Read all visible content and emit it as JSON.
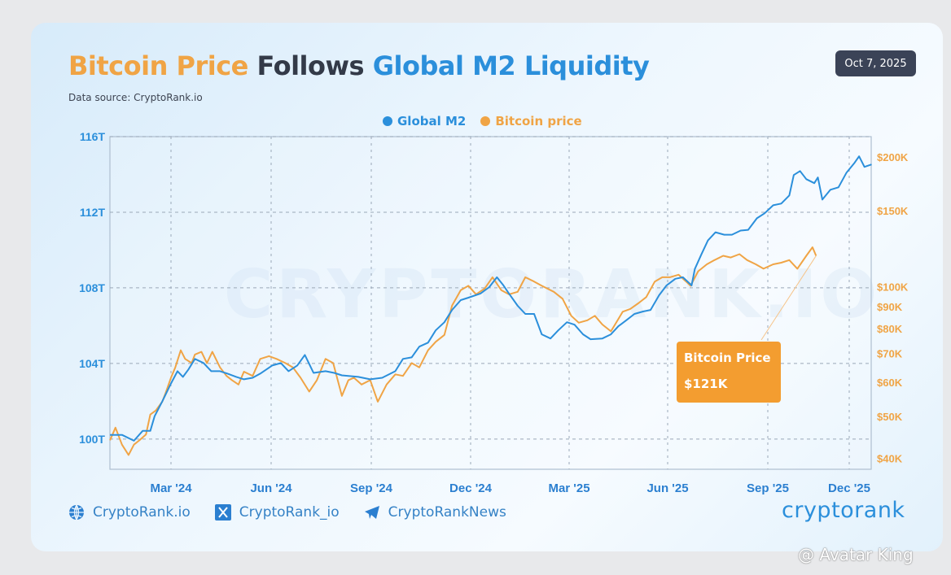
{
  "header": {
    "title_part1": "Bitcoin Price",
    "title_part2": "Follows",
    "title_part3": "Global M2 Liquidity",
    "data_source": "Data source: CryptoRank.io",
    "date_badge": "Oct 7, 2025"
  },
  "colors": {
    "m2": "#2b8fdb",
    "btc": "#f0a445",
    "callout": "#f39d30",
    "badge": "#3b4357"
  },
  "callout": {
    "label": "Bitcoin Price",
    "value": "$121K"
  },
  "watermark": "CRYPTORANK.IO",
  "footer": {
    "website": "CryptoRank.io",
    "x_handle": "CryptoRank_io",
    "telegram": "CryptoRankNews",
    "logo": "cryptorank",
    "icons": [
      "globe-icon",
      "x-icon",
      "telegram-icon"
    ]
  },
  "credit": "@ Avatar King",
  "chart_data": {
    "type": "line",
    "title": "Bitcoin Price Follows Global M2 Liquidity",
    "legend": [
      "Global M2",
      "Bitcoin price"
    ],
    "legend_position": "top-center",
    "grid": true,
    "x_tick_labels": [
      "Mar '24",
      "Jun '24",
      "Sep '24",
      "Dec '24",
      "Mar '25",
      "Jun '25",
      "Sep '25",
      "Dec '25"
    ],
    "x_tick_dates": [
      "2024-03-01",
      "2024-06-01",
      "2024-09-01",
      "2024-12-01",
      "2025-03-01",
      "2025-06-01",
      "2025-09-01",
      "2025-12-01"
    ],
    "y_left": {
      "ticks": [
        100,
        104,
        108,
        112,
        116
      ],
      "tick_labels": [
        "100T",
        "104T",
        "108T",
        "112T",
        "116T"
      ],
      "range": [
        98.4,
        116
      ],
      "unit": "T"
    },
    "y_right": {
      "scale": "log",
      "ticks": [
        40,
        50,
        60,
        70,
        80,
        90,
        100,
        150,
        200
      ],
      "tick_labels": [
        "$40K",
        "$50K",
        "$60K",
        "$70K",
        "$80K",
        "$90K",
        "$100K",
        "$150K",
        "$200K"
      ],
      "range": [
        37.7,
        223
      ],
      "unit": "K USD"
    },
    "series": [
      {
        "name": "Global M2",
        "axis": "left",
        "points": [
          [
            "2024-01-05",
            100.22
          ],
          [
            "2024-01-16",
            100.22
          ],
          [
            "2024-01-27",
            99.91
          ],
          [
            "2024-02-04",
            100.43
          ],
          [
            "2024-02-11",
            100.43
          ],
          [
            "2024-02-15",
            101.21
          ],
          [
            "2024-02-22",
            101.99
          ],
          [
            "2024-03-01",
            102.94
          ],
          [
            "2024-03-07",
            103.59
          ],
          [
            "2024-03-12",
            103.29
          ],
          [
            "2024-03-17",
            103.68
          ],
          [
            "2024-03-23",
            104.24
          ],
          [
            "2024-03-31",
            104.02
          ],
          [
            "2024-04-07",
            103.59
          ],
          [
            "2024-04-15",
            103.59
          ],
          [
            "2024-04-22",
            103.46
          ],
          [
            "2024-04-30",
            103.29
          ],
          [
            "2024-05-07",
            103.16
          ],
          [
            "2024-05-15",
            103.24
          ],
          [
            "2024-05-22",
            103.46
          ],
          [
            "2024-06-02",
            103.89
          ],
          [
            "2024-06-10",
            104.02
          ],
          [
            "2024-06-17",
            103.59
          ],
          [
            "2024-06-25",
            103.89
          ],
          [
            "2024-07-02",
            104.45
          ],
          [
            "2024-07-10",
            103.5
          ],
          [
            "2024-07-21",
            103.59
          ],
          [
            "2024-07-29",
            103.5
          ],
          [
            "2024-08-05",
            103.37
          ],
          [
            "2024-08-20",
            103.29
          ],
          [
            "2024-08-31",
            103.16
          ],
          [
            "2024-09-11",
            103.24
          ],
          [
            "2024-09-23",
            103.59
          ],
          [
            "2024-09-30",
            104.24
          ],
          [
            "2024-10-08",
            104.32
          ],
          [
            "2024-10-15",
            104.89
          ],
          [
            "2024-10-23",
            105.1
          ],
          [
            "2024-10-30",
            105.75
          ],
          [
            "2024-11-07",
            106.18
          ],
          [
            "2024-11-14",
            106.83
          ],
          [
            "2024-11-22",
            107.35
          ],
          [
            "2024-11-29",
            107.48
          ],
          [
            "2024-12-10",
            107.7
          ],
          [
            "2024-12-18",
            108.04
          ],
          [
            "2024-12-25",
            108.56
          ],
          [
            "2024-12-31",
            108.13
          ],
          [
            "2025-01-05",
            107.7
          ],
          [
            "2025-01-13",
            107.05
          ],
          [
            "2025-01-20",
            106.62
          ],
          [
            "2025-01-28",
            106.62
          ],
          [
            "2025-02-04",
            105.54
          ],
          [
            "2025-02-12",
            105.32
          ],
          [
            "2025-02-19",
            105.75
          ],
          [
            "2025-02-27",
            106.18
          ],
          [
            "2025-03-06",
            106.05
          ],
          [
            "2025-03-14",
            105.54
          ],
          [
            "2025-03-21",
            105.28
          ],
          [
            "2025-04-01",
            105.32
          ],
          [
            "2025-04-09",
            105.54
          ],
          [
            "2025-04-16",
            105.97
          ],
          [
            "2025-04-24",
            106.31
          ],
          [
            "2025-05-01",
            106.62
          ],
          [
            "2025-05-09",
            106.75
          ],
          [
            "2025-05-16",
            106.83
          ],
          [
            "2025-05-24",
            107.61
          ],
          [
            "2025-05-31",
            108.13
          ],
          [
            "2025-06-08",
            108.48
          ],
          [
            "2025-06-15",
            108.56
          ],
          [
            "2025-06-23",
            108.13
          ],
          [
            "2025-06-26",
            109.0
          ],
          [
            "2025-07-02",
            109.77
          ],
          [
            "2025-07-08",
            110.51
          ],
          [
            "2025-07-15",
            110.94
          ],
          [
            "2025-07-23",
            110.81
          ],
          [
            "2025-07-30",
            110.81
          ],
          [
            "2025-08-07",
            111.03
          ],
          [
            "2025-08-14",
            111.07
          ],
          [
            "2025-08-22",
            111.68
          ],
          [
            "2025-08-29",
            111.94
          ],
          [
            "2025-09-07",
            112.37
          ],
          [
            "2025-09-16",
            112.46
          ],
          [
            "2025-09-25",
            112.89
          ],
          [
            "2025-09-30",
            113.97
          ],
          [
            "2025-10-07",
            114.18
          ],
          [
            "2025-10-14",
            113.75
          ],
          [
            "2025-10-23",
            113.54
          ],
          [
            "2025-10-27",
            113.84
          ],
          [
            "2025-11-01",
            112.67
          ],
          [
            "2025-11-10",
            113.19
          ],
          [
            "2025-11-19",
            113.32
          ],
          [
            "2025-11-28",
            114.1
          ],
          [
            "2025-12-07",
            114.62
          ],
          [
            "2025-12-12",
            114.96
          ],
          [
            "2025-12-18",
            114.4
          ],
          [
            "2025-12-26",
            114.53
          ]
        ]
      },
      {
        "name": "Bitcoin price",
        "axis": "right",
        "points": [
          [
            "2024-01-05",
            44.0
          ],
          [
            "2024-01-10",
            47.1
          ],
          [
            "2024-01-16",
            43.0
          ],
          [
            "2024-01-22",
            40.7
          ],
          [
            "2024-01-27",
            43.0
          ],
          [
            "2024-02-01",
            44.0
          ],
          [
            "2024-02-07",
            45.4
          ],
          [
            "2024-02-11",
            50.5
          ],
          [
            "2024-02-16",
            51.6
          ],
          [
            "2024-02-22",
            54.1
          ],
          [
            "2024-02-25",
            56.6
          ],
          [
            "2024-03-01",
            61.5
          ],
          [
            "2024-03-05",
            65.0
          ],
          [
            "2024-03-10",
            71.2
          ],
          [
            "2024-03-14",
            68.0
          ],
          [
            "2024-03-20",
            66.5
          ],
          [
            "2024-03-23",
            69.6
          ],
          [
            "2024-03-29",
            70.6
          ],
          [
            "2024-04-03",
            66.5
          ],
          [
            "2024-04-08",
            70.6
          ],
          [
            "2024-04-15",
            65.0
          ],
          [
            "2024-04-21",
            62.1
          ],
          [
            "2024-04-26",
            60.7
          ],
          [
            "2024-05-02",
            59.3
          ],
          [
            "2024-05-07",
            63.5
          ],
          [
            "2024-05-15",
            62.1
          ],
          [
            "2024-05-22",
            68.0
          ],
          [
            "2024-05-30",
            69.0
          ],
          [
            "2024-06-06",
            68.0
          ],
          [
            "2024-06-14",
            66.5
          ],
          [
            "2024-06-21",
            65.0
          ],
          [
            "2024-06-28",
            61.5
          ],
          [
            "2024-07-06",
            57.1
          ],
          [
            "2024-07-13",
            60.7
          ],
          [
            "2024-07-21",
            68.0
          ],
          [
            "2024-07-28",
            66.5
          ],
          [
            "2024-08-05",
            55.8
          ],
          [
            "2024-08-11",
            60.7
          ],
          [
            "2024-08-16",
            61.5
          ],
          [
            "2024-08-23",
            59.3
          ],
          [
            "2024-08-31",
            60.7
          ],
          [
            "2024-09-07",
            54.1
          ],
          [
            "2024-09-15",
            59.3
          ],
          [
            "2024-09-23",
            62.6
          ],
          [
            "2024-09-30",
            62.1
          ],
          [
            "2024-10-08",
            66.5
          ],
          [
            "2024-10-15",
            65.0
          ],
          [
            "2024-10-23",
            71.2
          ],
          [
            "2024-10-30",
            74.5
          ],
          [
            "2024-11-07",
            77.3
          ],
          [
            "2024-11-14",
            90.4
          ],
          [
            "2024-11-22",
            98.2
          ],
          [
            "2024-11-29",
            100.5
          ],
          [
            "2024-12-06",
            96.0
          ],
          [
            "2024-12-14",
            99.1
          ],
          [
            "2024-12-21",
            105.2
          ],
          [
            "2024-12-29",
            98.2
          ],
          [
            "2025-01-05",
            96.0
          ],
          [
            "2025-01-13",
            97.3
          ],
          [
            "2025-01-20",
            105.2
          ],
          [
            "2025-01-28",
            102.8
          ],
          [
            "2025-02-04",
            100.5
          ],
          [
            "2025-02-15",
            97.3
          ],
          [
            "2025-02-23",
            93.8
          ],
          [
            "2025-03-03",
            85.6
          ],
          [
            "2025-03-10",
            82.5
          ],
          [
            "2025-03-18",
            83.6
          ],
          [
            "2025-03-25",
            85.6
          ],
          [
            "2025-04-01",
            81.7
          ],
          [
            "2025-04-09",
            78.8
          ],
          [
            "2025-04-12",
            81.0
          ],
          [
            "2025-04-20",
            87.5
          ],
          [
            "2025-04-27",
            88.8
          ],
          [
            "2025-05-05",
            91.7
          ],
          [
            "2025-05-12",
            94.6
          ],
          [
            "2025-05-20",
            102.8
          ],
          [
            "2025-05-27",
            105.2
          ],
          [
            "2025-06-03",
            105.2
          ],
          [
            "2025-06-11",
            106.6
          ],
          [
            "2025-06-18",
            102.8
          ],
          [
            "2025-06-22",
            100.5
          ],
          [
            "2025-06-29",
            108.6
          ],
          [
            "2025-07-07",
            112.7
          ],
          [
            "2025-07-14",
            115.3
          ],
          [
            "2025-07-22",
            118.0
          ],
          [
            "2025-07-29",
            116.9
          ],
          [
            "2025-08-06",
            119.0
          ],
          [
            "2025-08-13",
            115.3
          ],
          [
            "2025-08-21",
            112.7
          ],
          [
            "2025-08-28",
            110.1
          ],
          [
            "2025-09-07",
            112.7
          ],
          [
            "2025-09-16",
            113.7
          ],
          [
            "2025-09-25",
            115.3
          ],
          [
            "2025-10-04",
            110.1
          ],
          [
            "2025-10-14",
            118.0
          ],
          [
            "2025-10-21",
            123.5
          ],
          [
            "2025-10-25",
            118.0
          ]
        ]
      }
    ],
    "annotation": {
      "label": "Bitcoin Price",
      "value": "$121K"
    }
  }
}
